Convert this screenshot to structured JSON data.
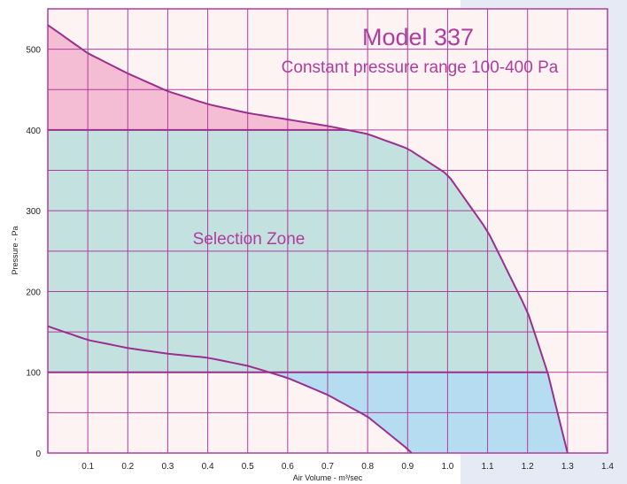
{
  "chart_data": {
    "type": "area",
    "title": "Model 337",
    "subtitle": "Constant pressure range 100-400 Pa",
    "xlabel": "Air Volume - m³/sec",
    "ylabel": "Pressure - Pa",
    "annotation": "Selection Zone",
    "xlim": [
      0,
      1.4
    ],
    "ylim": [
      0,
      550
    ],
    "x_ticks": [
      "0.1",
      "0.2",
      "0.3",
      "0.4",
      "0.5",
      "0.6",
      "0.7",
      "0.8",
      "0.9",
      "1.0",
      "1.1",
      "1.2",
      "1.3",
      "1.4"
    ],
    "y_ticks": [
      "0",
      "100",
      "200",
      "300",
      "400",
      "500"
    ],
    "grid": true,
    "constant_pressure_lines": [
      100,
      400
    ],
    "series": [
      {
        "values": [
          [
            0,
            530
          ],
          [
            0.1,
            495
          ],
          [
            0.2,
            470
          ],
          [
            0.3,
            448
          ],
          [
            0.4,
            432
          ],
          [
            0.5,
            421
          ],
          [
            0.6,
            413
          ],
          [
            0.7,
            405
          ],
          [
            0.8,
            395
          ],
          [
            0.9,
            377
          ],
          [
            1.0,
            345
          ],
          [
            1.1,
            275
          ],
          [
            1.2,
            175
          ],
          [
            1.25,
            100
          ],
          [
            1.3,
            0
          ]
        ]
      },
      {
        "values": [
          [
            0,
            157
          ],
          [
            0.1,
            140
          ],
          [
            0.2,
            130
          ],
          [
            0.3,
            123
          ],
          [
            0.4,
            118
          ],
          [
            0.5,
            108
          ],
          [
            0.6,
            93
          ],
          [
            0.7,
            72
          ],
          [
            0.8,
            45
          ],
          [
            0.9,
            5
          ],
          [
            0.91,
            0
          ]
        ]
      }
    ],
    "zone_colors": {
      "upper_zone": "#f5bdd3",
      "selection_zone": "#c2e1df",
      "lower_zone": "#b5dcf1",
      "plot_background": "#fdf3f3",
      "grid": "#b03c9e",
      "curve": "#9b2f8e",
      "text_accent": "#b03c9e",
      "side_band": "#e6eaf4"
    }
  }
}
